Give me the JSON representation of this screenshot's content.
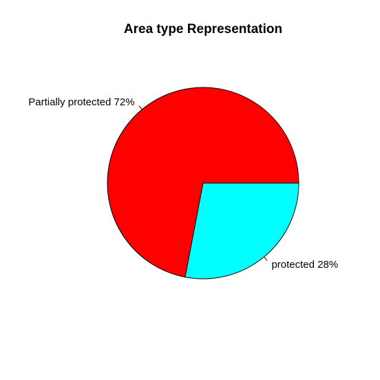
{
  "chart_data": {
    "type": "pie",
    "title": "Area type Representation",
    "start_angle_deg": 0,
    "direction": "counterclockwise",
    "slices": [
      {
        "label": "Partially protected 72%",
        "value": 72,
        "color": "#FF0000"
      },
      {
        "label": "protected 28%",
        "value": 28,
        "color": "#00FFFF"
      }
    ]
  }
}
